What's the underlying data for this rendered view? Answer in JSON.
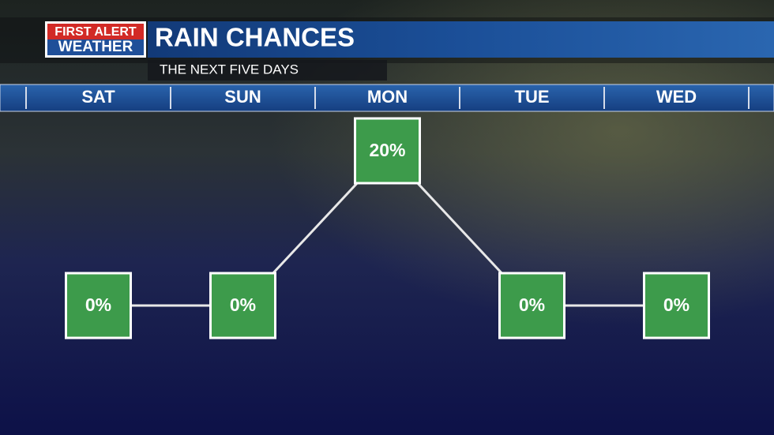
{
  "logo": {
    "line1": "FIRST ALERT",
    "line2": "WEATHER"
  },
  "chart_data": {
    "type": "line",
    "title": "RAIN CHANCES",
    "subtitle": "THE NEXT FIVE DAYS",
    "categories": [
      "SAT",
      "SUN",
      "MON",
      "TUE",
      "WED"
    ],
    "values": [
      0,
      0,
      20,
      0,
      0
    ],
    "value_labels": [
      "0%",
      "0%",
      "20%",
      "0%",
      "0%"
    ],
    "color": "#3d9b4b"
  }
}
